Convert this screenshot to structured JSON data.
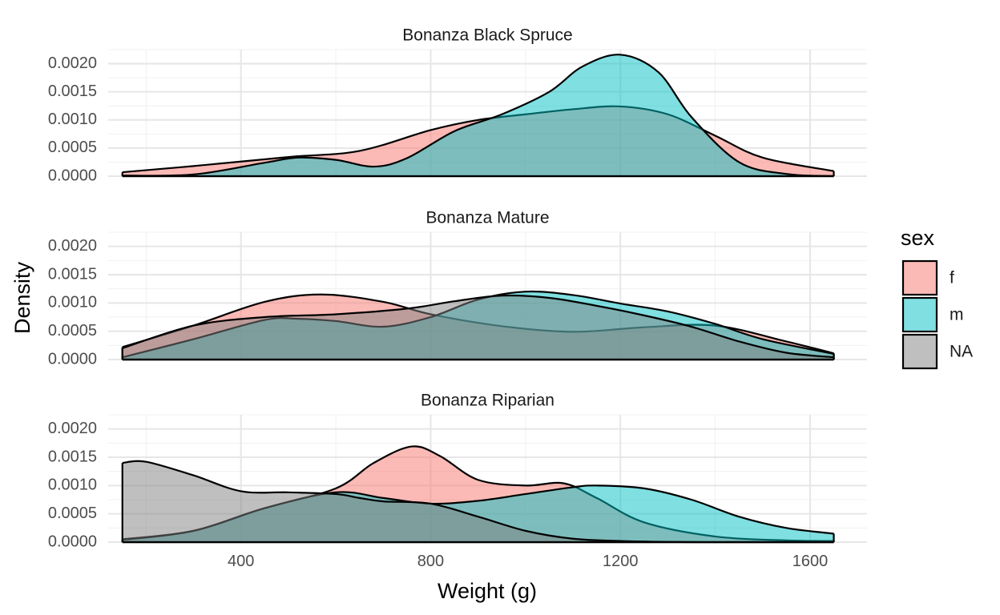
{
  "chart_data": {
    "type": "area",
    "subtype": "faceted density",
    "xlabel": "Weight (g)",
    "ylabel": "Density",
    "xlim": [
      120,
      1720
    ],
    "ylim": [
      0,
      0.00225
    ],
    "x_ticks": [
      400,
      800,
      1200,
      1600
    ],
    "x_tick_labels": [
      "400",
      "800",
      "1200",
      "1600"
    ],
    "y_ticks": [
      0,
      0.0005,
      0.001,
      0.0015,
      0.002
    ],
    "y_tick_labels": [
      "0.0000",
      "0.0005",
      "0.0010",
      "0.0015",
      "0.0020"
    ],
    "grid": true,
    "legend": {
      "title": "sex",
      "position": "right",
      "items": [
        {
          "label": "f",
          "color": "#F8766D"
        },
        {
          "label": "m",
          "color": "#00BFC4"
        },
        {
          "label": "NA",
          "color": "#7F7F7F"
        }
      ]
    },
    "facets": [
      {
        "title": "Bonanza Black Spruce",
        "series": [
          {
            "name": "f",
            "color": "#F8766D",
            "x": [
              150,
              300,
              500,
              650,
              800,
              900,
              1000,
              1100,
              1200,
              1300,
              1400,
              1500,
              1650
            ],
            "y": [
              7e-05,
              0.00018,
              0.00034,
              0.00045,
              0.00082,
              0.001,
              0.0011,
              0.00119,
              0.00124,
              0.0011,
              0.00072,
              0.00033,
              9e-05
            ]
          },
          {
            "name": "m",
            "color": "#00BFC4",
            "x": [
              150,
              300,
              450,
              520,
              600,
              680,
              750,
              850,
              950,
              1050,
              1120,
              1200,
              1280,
              1350,
              1450,
              1550,
              1650
            ],
            "y": [
              1e-05,
              3e-05,
              0.00024,
              0.00033,
              0.00029,
              0.00017,
              0.00032,
              0.0008,
              0.0011,
              0.0015,
              0.00195,
              0.00216,
              0.00185,
              0.00105,
              0.00025,
              4e-05,
              0.0
            ]
          }
        ]
      },
      {
        "title": "Bonanza Mature",
        "series": [
          {
            "name": "f",
            "color": "#F8766D",
            "x": [
              150,
              300,
              450,
              570,
              700,
              800,
              950,
              1100,
              1250,
              1400,
              1550,
              1650
            ],
            "y": [
              0.00022,
              0.0006,
              0.00102,
              0.00115,
              0.00102,
              0.0008,
              0.00059,
              0.00049,
              0.00057,
              0.0006,
              0.00032,
              0.00011
            ]
          },
          {
            "name": "m",
            "color": "#00BFC4",
            "x": [
              150,
              300,
              450,
              520,
              600,
              700,
              800,
              900,
              1000,
              1100,
              1200,
              1300,
              1400,
              1500,
              1650
            ],
            "y": [
              4e-05,
              0.00036,
              0.0007,
              0.00072,
              0.00068,
              0.00058,
              0.00075,
              0.00106,
              0.0012,
              0.00114,
              0.00099,
              0.00085,
              0.00063,
              0.00036,
              0.0001
            ]
          },
          {
            "name": "NA",
            "color": "#7F7F7F",
            "x": [
              150,
              300,
              450,
              600,
              750,
              850,
              950,
              1050,
              1150,
              1250,
              1350,
              1450,
              1550,
              1650
            ],
            "y": [
              0.0002,
              0.0006,
              0.00075,
              0.0008,
              0.0009,
              0.00103,
              0.00113,
              0.00109,
              0.00095,
              0.00078,
              0.00058,
              0.00032,
              0.00012,
              4e-05
            ]
          }
        ]
      },
      {
        "title": "Bonanza Riparian",
        "series": [
          {
            "name": "f",
            "color": "#F8766D",
            "x": [
              150,
              300,
              450,
              600,
              680,
              760,
              820,
              900,
              1000,
              1080,
              1150,
              1250,
              1400,
              1550,
              1650
            ],
            "y": [
              5e-05,
              0.0002,
              0.0006,
              0.00095,
              0.0014,
              0.00169,
              0.00152,
              0.0011,
              0.001,
              0.00104,
              0.00078,
              0.00035,
              0.0001,
              3e-05,
              2e-05
            ]
          },
          {
            "name": "m",
            "color": "#00BFC4",
            "x": [
              150,
              300,
              450,
              600,
              700,
              800,
              900,
              1000,
              1100,
              1150,
              1250,
              1350,
              1450,
              1550,
              1650
            ],
            "y": [
              4e-05,
              0.0002,
              0.0006,
              0.00088,
              0.00078,
              0.00068,
              0.00073,
              0.00085,
              0.00097,
              0.001,
              0.00095,
              0.00075,
              0.00045,
              0.00025,
              0.00015
            ]
          },
          {
            "name": "NA",
            "color": "#7F7F7F",
            "x": [
              150,
              200,
              300,
              400,
              500,
              600,
              650,
              700,
              800,
              900,
              1000,
              1100,
              1200,
              1350,
              1500,
              1650
            ],
            "y": [
              0.0014,
              0.00142,
              0.00118,
              0.0009,
              0.00088,
              0.00085,
              0.00078,
              0.00072,
              0.00068,
              0.00045,
              0.0002,
              6e-05,
              2e-05,
              0.0,
              0.0,
              0.0
            ]
          }
        ]
      }
    ]
  }
}
